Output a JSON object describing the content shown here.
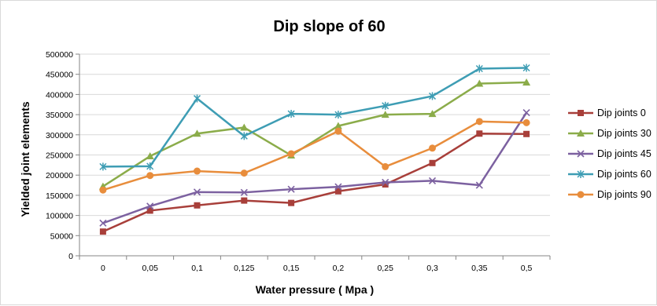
{
  "chart_data": {
    "type": "line",
    "title": "Dip slope of 60",
    "xlabel": "Water pressure ( Mpa )",
    "ylabel": "Yielded joint elements",
    "categories": [
      "0",
      "0,05",
      "0,1",
      "0,125",
      "0,15",
      "0,2",
      "0,25",
      "0,3",
      "0,35",
      "0,5"
    ],
    "ylim": [
      0,
      500000
    ],
    "yticks": [
      "0",
      "50000",
      "100000",
      "150000",
      "200000",
      "250000",
      "300000",
      "350000",
      "400000",
      "450000",
      "500000"
    ],
    "grid": true,
    "legend_position": "right",
    "series": [
      {
        "name": "Dip joints  0",
        "marker": "square",
        "color": "#A83F3A",
        "values": [
          60000,
          112000,
          125000,
          137000,
          131000,
          160000,
          177000,
          230000,
          303000,
          302000
        ]
      },
      {
        "name": "Dip joints  30",
        "marker": "triangle",
        "color": "#8BAC4A",
        "values": [
          172000,
          247000,
          303000,
          318000,
          249000,
          322000,
          350000,
          352000,
          427000,
          430000
        ]
      },
      {
        "name": "Dip joints  45",
        "marker": "x",
        "color": "#7C61A0",
        "values": [
          81000,
          123000,
          158000,
          157000,
          165000,
          171000,
          182000,
          186000,
          175000,
          355000
        ]
      },
      {
        "name": "Dip joints  60",
        "marker": "star",
        "color": "#3E9DB4",
        "values": [
          221000,
          222000,
          390000,
          297000,
          352000,
          350000,
          372000,
          396000,
          464000,
          466000
        ]
      },
      {
        "name": "Dip joints  90",
        "marker": "circle",
        "color": "#E88D3C",
        "values": [
          163000,
          199000,
          210000,
          205000,
          253000,
          309000,
          221000,
          267000,
          333000,
          330000
        ]
      }
    ]
  }
}
